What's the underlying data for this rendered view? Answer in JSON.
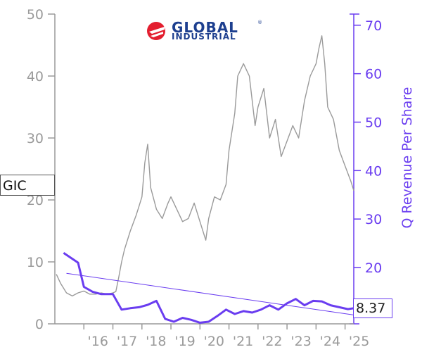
{
  "logo": {
    "line1": "GLOBAL",
    "line2": "INDUSTRIAL",
    "registered": "®",
    "brand_red": "#e31e2f",
    "brand_blue": "#1d3f8f"
  },
  "ticker": "GIC",
  "last_value_label": "8.37",
  "colors": {
    "price_line": "#9a9a9a",
    "revenue_line": "#6a3df0",
    "trend_line": "#6a3df0",
    "left_axis": "#9a9a9a",
    "right_axis": "#6a3df0"
  },
  "chart_data": {
    "type": "line",
    "title": "",
    "xlabel": "",
    "ylabel_left": "",
    "ylabel_right": "Q Revenue Per Share",
    "x_ticks": [
      "'16",
      "'17",
      "'18",
      "'19",
      "'20",
      "'21",
      "'22",
      "'23",
      "'24",
      "'25"
    ],
    "x_range": [
      2015.0,
      2025.3
    ],
    "y_left_ticks": [
      0,
      10,
      20,
      30,
      40,
      50
    ],
    "y_left_range": [
      0,
      50
    ],
    "y_right_ticks": [
      20,
      30,
      40,
      50,
      60,
      70
    ],
    "y_right_range": [
      8.37,
      72.3
    ],
    "grid": false,
    "series": [
      {
        "name": "GIC",
        "axis": "left",
        "x": [
          2015.05,
          2015.2,
          2015.4,
          2015.6,
          2015.8,
          2016.0,
          2016.2,
          2016.4,
          2016.6,
          2016.8,
          2017.0,
          2017.1,
          2017.2,
          2017.3,
          2017.4,
          2017.6,
          2017.8,
          2017.9,
          2018.0,
          2018.1,
          2018.2,
          2018.3,
          2018.5,
          2018.7,
          2018.9,
          2019.0,
          2019.2,
          2019.4,
          2019.6,
          2019.8,
          2020.0,
          2020.2,
          2020.3,
          2020.5,
          2020.7,
          2020.9,
          2021.0,
          2021.2,
          2021.3,
          2021.5,
          2021.7,
          2021.9,
          2022.0,
          2022.2,
          2022.4,
          2022.6,
          2022.8,
          2023.0,
          2023.2,
          2023.4,
          2023.6,
          2023.8,
          2024.0,
          2024.1,
          2024.2,
          2024.3,
          2024.4,
          2024.6,
          2024.8,
          2025.0,
          2025.2,
          2025.3
        ],
        "values": [
          8.0,
          6.5,
          5.0,
          4.5,
          5.0,
          5.3,
          4.8,
          4.8,
          5.0,
          4.8,
          5.0,
          5.2,
          7.5,
          10.0,
          12.0,
          15.0,
          17.5,
          19.0,
          20.5,
          26.0,
          29.0,
          22.0,
          18.5,
          17.0,
          19.5,
          20.5,
          18.5,
          16.5,
          17.0,
          19.5,
          16.5,
          13.5,
          17.0,
          20.5,
          20.0,
          22.5,
          28.0,
          34.0,
          40.0,
          42.0,
          40.0,
          32.0,
          35.0,
          38.0,
          30.0,
          33.0,
          27.0,
          29.5,
          32.0,
          30.0,
          36.0,
          40.0,
          42.0,
          44.5,
          46.5,
          42.0,
          35.0,
          33.0,
          28.0,
          25.5,
          23.0,
          21.5
        ]
      },
      {
        "name": "Q Revenue Per Share",
        "axis": "right",
        "x": [
          2015.3,
          2015.8,
          2016.0,
          2016.3,
          2016.6,
          2017.0,
          2017.3,
          2017.6,
          2017.9,
          2018.2,
          2018.5,
          2018.8,
          2019.1,
          2019.4,
          2019.7,
          2020.0,
          2020.3,
          2020.6,
          2020.9,
          2021.2,
          2021.5,
          2021.8,
          2022.1,
          2022.4,
          2022.7,
          2023.0,
          2023.3,
          2023.6,
          2023.9,
          2024.2,
          2024.5,
          2024.8,
          2025.1,
          2025.3
        ],
        "values": [
          23.0,
          21.0,
          16.0,
          15.0,
          14.5,
          14.5,
          11.3,
          11.6,
          11.8,
          12.3,
          13.1,
          9.4,
          8.8,
          9.6,
          9.2,
          8.6,
          8.8,
          10.0,
          11.3,
          10.4,
          11.0,
          10.7,
          11.3,
          12.2,
          11.3,
          12.6,
          13.5,
          12.2,
          13.1,
          13.0,
          12.2,
          11.8,
          11.4,
          11.6
        ]
      },
      {
        "name": "",
        "axis": "right",
        "style": "trend",
        "x": [
          2015.4,
          2025.3
        ],
        "values": [
          18.8,
          10.2
        ]
      }
    ]
  }
}
